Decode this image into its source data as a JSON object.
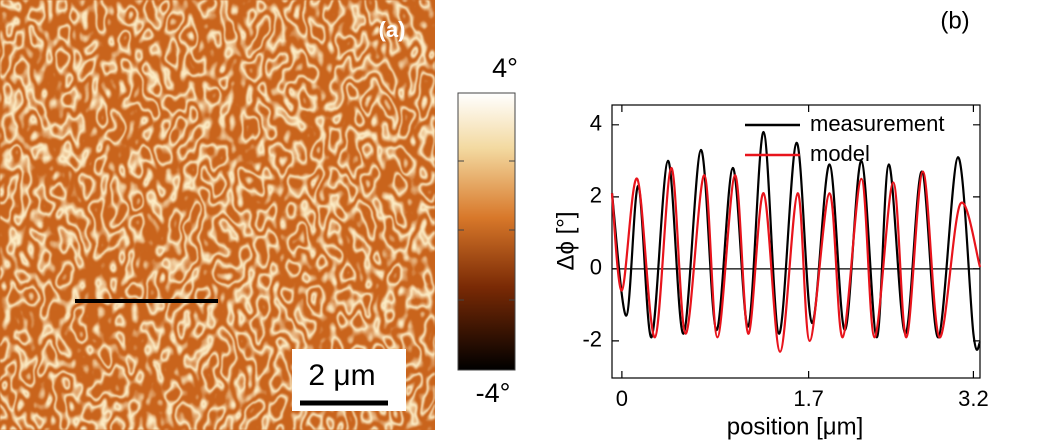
{
  "panel_a": {
    "label": "(a)",
    "scale_bar": "2 μm",
    "colorbar": {
      "max_label": "4°",
      "min_label": "-4°"
    }
  },
  "chart_data": {
    "type": "line",
    "label": "(b)",
    "x_label": "position [μm]",
    "y_label": "Δϕ [°]",
    "xlim": [
      -0.09,
      3.26
    ],
    "ylim": [
      -3.03,
      4.55
    ],
    "xticks": [
      0,
      1.7,
      3.2
    ],
    "yticks": [
      4,
      2,
      0,
      -2
    ],
    "zero_line": true,
    "legend": "top-right",
    "series": [
      {
        "name": "measurement",
        "color": "#000000",
        "x": [
          -0.09,
          0.04,
          0.15,
          0.27,
          0.42,
          0.56,
          0.72,
          0.86,
          1.01,
          1.15,
          1.29,
          1.43,
          1.59,
          1.73,
          1.89,
          2.03,
          2.18,
          2.32,
          2.43,
          2.58,
          2.73,
          2.88,
          3.06,
          3.2,
          3.26
        ],
        "values": [
          2.1,
          -1.3,
          2.3,
          -1.9,
          3.0,
          -1.8,
          3.3,
          -1.7,
          2.8,
          -1.6,
          3.8,
          -1.8,
          3.5,
          -1.5,
          2.9,
          -1.7,
          3.0,
          -1.9,
          2.9,
          -1.8,
          2.7,
          -1.9,
          3.1,
          -1.8,
          -2.05
        ]
      },
      {
        "name": "model",
        "color": "#e8141c",
        "x": [
          -0.09,
          0,
          0.14,
          0.3,
          0.45,
          0.58,
          0.75,
          0.87,
          1.03,
          1.15,
          1.29,
          1.44,
          1.6,
          1.71,
          1.89,
          2.01,
          2.18,
          2.3,
          2.47,
          2.59,
          2.74,
          2.89,
          3.08,
          3.26
        ],
        "values": [
          2.1,
          -0.6,
          2.5,
          -1.9,
          2.8,
          -1.8,
          2.6,
          -1.9,
          2.6,
          -1.8,
          2.1,
          -2.3,
          2.1,
          -2.0,
          2.1,
          -1.9,
          2.5,
          -1.9,
          2.4,
          -1.9,
          2.7,
          -1.9,
          1.8,
          0.05
        ]
      }
    ]
  }
}
